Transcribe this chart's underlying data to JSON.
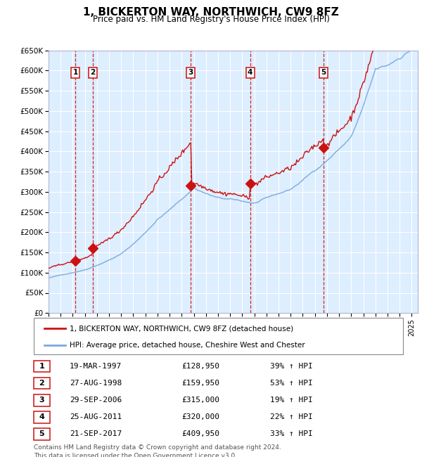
{
  "title": "1, BICKERTON WAY, NORTHWICH, CW9 8FZ",
  "subtitle": "Price paid vs. HM Land Registry's House Price Index (HPI)",
  "legend_line1": "1, BICKERTON WAY, NORTHWICH, CW9 8FZ (detached house)",
  "legend_line2": "HPI: Average price, detached house, Cheshire West and Chester",
  "footer": "Contains HM Land Registry data © Crown copyright and database right 2024.\nThis data is licensed under the Open Government Licence v3.0.",
  "sales": [
    {
      "num": 1,
      "date": 1997.22,
      "price": 128950,
      "label": "19-MAR-1997",
      "pct": "39% ↑ HPI"
    },
    {
      "num": 2,
      "date": 1998.65,
      "price": 159950,
      "label": "27-AUG-1998",
      "pct": "53% ↑ HPI"
    },
    {
      "num": 3,
      "date": 2006.75,
      "price": 315000,
      "label": "29-SEP-2006",
      "pct": "19% ↑ HPI"
    },
    {
      "num": 4,
      "date": 2011.65,
      "price": 320000,
      "label": "25-AUG-2011",
      "pct": "22% ↑ HPI"
    },
    {
      "num": 5,
      "date": 2017.73,
      "price": 409950,
      "label": "21-SEP-2017",
      "pct": "33% ↑ HPI"
    }
  ],
  "hpi_color": "#7aaadd",
  "price_color": "#cc1111",
  "marker_color": "#cc1111",
  "bg_color": "#ddeeff",
  "grid_color": "#ffffff",
  "vline_color": "#cc1111",
  "box_color": "#cc1111",
  "ylim": [
    0,
    650000
  ],
  "xlim": [
    1995.0,
    2025.5
  ],
  "yticks": [
    0,
    50000,
    100000,
    150000,
    200000,
    250000,
    300000,
    350000,
    400000,
    450000,
    500000,
    550000,
    600000,
    650000
  ],
  "ytick_labels": [
    "£0",
    "£50K",
    "£100K",
    "£150K",
    "£200K",
    "£250K",
    "£300K",
    "£350K",
    "£400K",
    "£450K",
    "£500K",
    "£550K",
    "£600K",
    "£650K"
  ]
}
